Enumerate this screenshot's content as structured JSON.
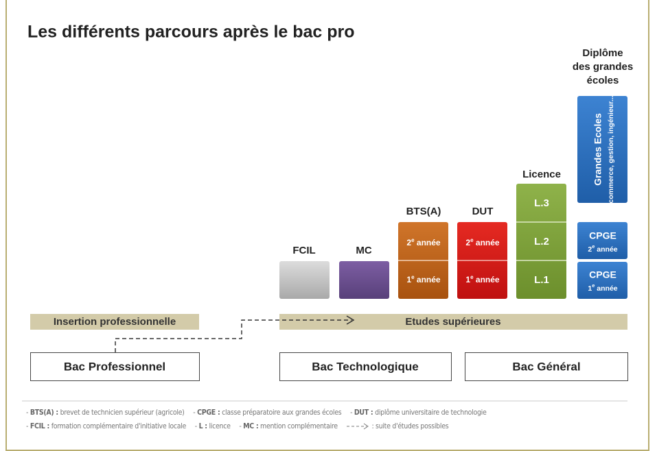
{
  "title": "Les différents parcours après le bac pro",
  "columns": {
    "fcil": {
      "label": "FCIL"
    },
    "mc": {
      "label": "MC"
    },
    "bts": {
      "label": "BTS(A)",
      "years": [
        {
          "num": "2",
          "sup": "e",
          "rest": " année"
        },
        {
          "num": "1",
          "sup": "e",
          "rest": " année"
        }
      ]
    },
    "dut": {
      "label": "DUT",
      "years": [
        {
          "num": "2",
          "sup": "e",
          "rest": " année"
        },
        {
          "num": "1",
          "sup": "e",
          "rest": " année"
        }
      ]
    },
    "licence": {
      "label": "Licence",
      "years": [
        "L.3",
        "L.2",
        "L.1"
      ]
    },
    "ecoles": {
      "label": [
        "Diplôme",
        "des grandes",
        "écoles"
      ],
      "box": [
        "Grandes Ecoles",
        "commerce, gestion, ingénieur..."
      ],
      "cpge": [
        {
          "name": "CPGE",
          "num": "2",
          "sup": "e",
          "rest": " année"
        },
        {
          "name": "CPGE",
          "num": "1",
          "sup": "e",
          "rest": " année"
        }
      ]
    }
  },
  "bands": [
    "Insertion professionnelle",
    "Etudes supérieures"
  ],
  "bacs": [
    "Bac Professionnel",
    "Bac Technologique",
    "Bac Général"
  ],
  "footnote": {
    "items": [
      {
        "abbr": "BTS(A) :",
        "text": " brevet de technicien supérieur (agricole)"
      },
      {
        "abbr": "CPGE :",
        "text": " classe préparatoire aux grandes écoles"
      },
      {
        "abbr": "DUT :",
        "text": " diplôme universitaire de technologie"
      },
      {
        "abbr": "FCIL :",
        "text": " formation complémentaire d'initiative locale"
      },
      {
        "abbr": "L :",
        "text": " licence"
      },
      {
        "abbr": "MC :",
        "text": " mention complémentaire"
      }
    ],
    "arrow": ": suite d'études possibles"
  }
}
